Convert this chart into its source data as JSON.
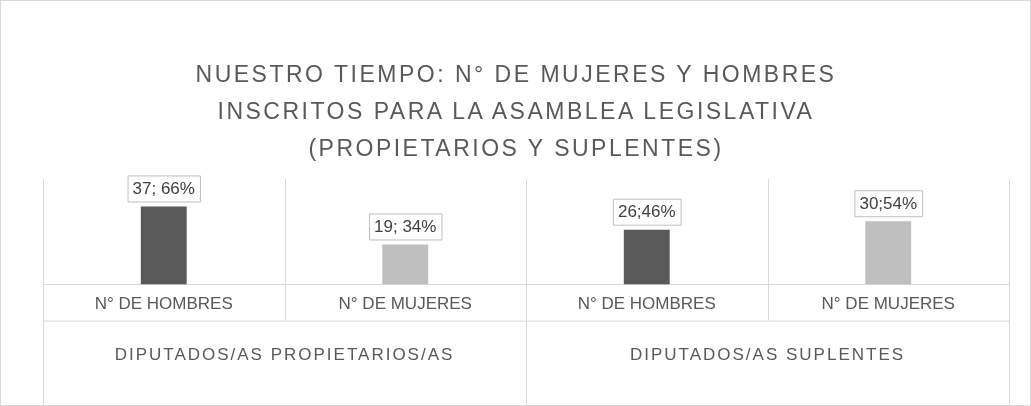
{
  "chart_data": {
    "type": "bar",
    "title": "NUESTRO TIEMPO: N° DE MUJERES Y HOMBRES INSCRITOS PARA LA ASAMBLEA LEGISLATIVA (PROPIETARIOS Y SUPLENTES)",
    "categories": [
      "N° DE HOMBRES",
      "N° DE MUJERES",
      "N° DE HOMBRES",
      "N° DE MUJERES"
    ],
    "values": [
      37,
      19,
      26,
      30
    ],
    "colors": [
      "#595959",
      "#bfbfbf",
      "#595959",
      "#bfbfbf"
    ],
    "value_labels": [
      "37; 66%",
      "19; 34%",
      "26;46%",
      "30;54%"
    ],
    "annotations": [
      "DIPUTADOS/AS PROPIETARIOS/AS",
      "DIPUTADOS/AS SUPLENTES"
    ],
    "grid": false,
    "legend": false
  }
}
